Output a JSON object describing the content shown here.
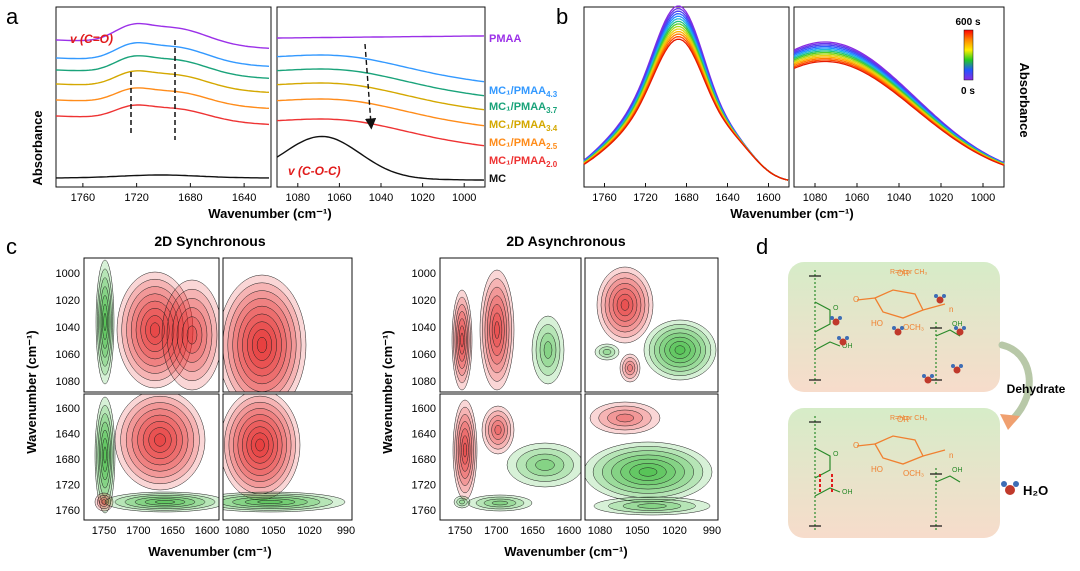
{
  "panels": {
    "a": "a",
    "b": "b",
    "c": "c",
    "d": "d"
  },
  "panel_a": {
    "ylabel": "Absorbance",
    "xlabel": "Wavenumber (cm⁻¹)",
    "left_ticks": [
      "1760",
      "1720",
      "1680",
      "1640"
    ],
    "right_ticks": [
      "1080",
      "1060",
      "1040",
      "1020",
      "1000"
    ],
    "annot_co": "v (C=O)",
    "annot_coc": "v (C-O-C)",
    "series": [
      {
        "name": "PMAA",
        "sub": "",
        "color": "#9b30e8"
      },
      {
        "name": "MC₁/PMAA",
        "sub": "4.3",
        "color": "#3399ff"
      },
      {
        "name": "MC₁/PMAA",
        "sub": "3.7",
        "color": "#1aa37a"
      },
      {
        "name": "MC₁/PMAA",
        "sub": "3.4",
        "color": "#d4a800"
      },
      {
        "name": "MC₁/PMAA",
        "sub": "2.5",
        "color": "#ff8c1a"
      },
      {
        "name": "MC₁/PMAA",
        "sub": "2.0",
        "color": "#ee3333"
      },
      {
        "name": "MC",
        "sub": "",
        "color": "#111111"
      }
    ]
  },
  "panel_b": {
    "ylabel": "Absorbance",
    "xlabel": "Wavenumber (cm⁻¹)",
    "left_ticks": [
      "1760",
      "1720",
      "1680",
      "1640",
      "1600"
    ],
    "right_ticks": [
      "1080",
      "1060",
      "1040",
      "1020",
      "1000"
    ],
    "colorbar_top": "600 s",
    "colorbar_bottom": "0 s"
  },
  "panel_c": {
    "sync_title": "2D Synchronous",
    "async_title": "2D Asynchronous",
    "ylabel": "Wavenumber (cm⁻¹)",
    "xlabel": "Wavenumber (cm⁻¹)",
    "y_top_ticks": [
      "1000",
      "1020",
      "1040",
      "1060",
      "1080"
    ],
    "y_bottom_ticks": [
      "1600",
      "1640",
      "1680",
      "1720",
      "1760"
    ],
    "x_left_ticks": [
      "1750",
      "1700",
      "1650",
      "1600"
    ],
    "x_right_ticks": [
      "1080",
      "1050",
      "1020",
      "990"
    ]
  },
  "panel_d": {
    "dehydrate": "Dehydrate",
    "water_legend": "H₂O",
    "r_label": "R=H or CH₃",
    "chem": {
      "or": "OR",
      "o": "O",
      "ho": "HO",
      "och3": "OCH₃",
      "oh": "OH",
      "n": "n"
    }
  },
  "colors": {
    "red": "#e11b1b",
    "green": "#22b022",
    "orange": "#f08030",
    "chain_green": "#2a8a2a"
  }
}
